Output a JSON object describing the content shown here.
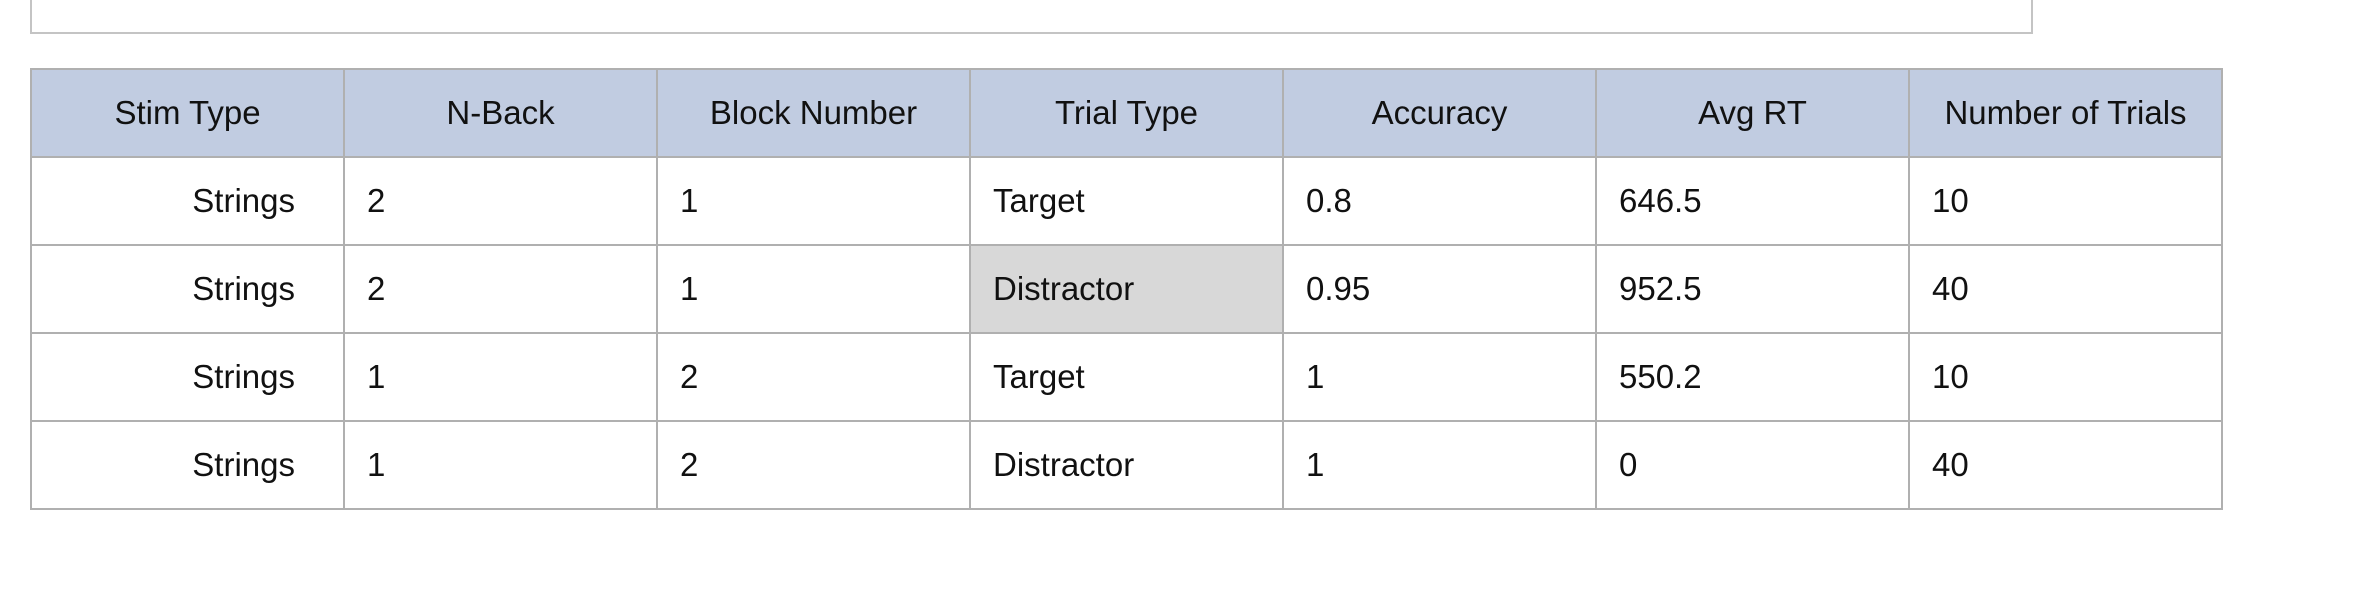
{
  "table": {
    "headers": [
      "Stim Type",
      "N-Back",
      "Block Number",
      "Trial Type",
      "Accuracy",
      "Avg RT",
      "Number of Trials"
    ],
    "rows": [
      [
        "Strings",
        "2",
        "1",
        "Target",
        "0.8",
        "646.5",
        "10"
      ],
      [
        "Strings",
        "2",
        "1",
        "Distractor",
        "0.95",
        "952.5",
        "40"
      ],
      [
        "Strings",
        "1",
        "2",
        "Target",
        "1",
        "550.2",
        "10"
      ],
      [
        "Strings",
        "1",
        "2",
        "Distractor",
        "1",
        "0",
        "40"
      ]
    ],
    "selected_cell": {
      "row": 1,
      "column": "Trial Type"
    },
    "colors": {
      "header_bg": "#c1cce1",
      "selected_bg": "#d8d8d8",
      "border": "#b0b0b0"
    }
  }
}
